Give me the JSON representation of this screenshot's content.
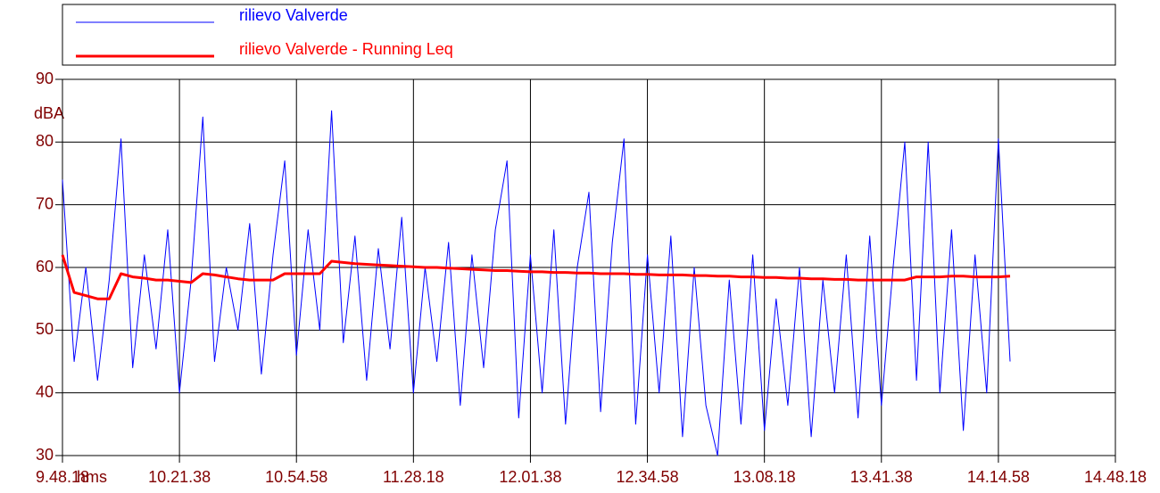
{
  "chart_data": {
    "type": "line",
    "y_label": "dBA",
    "x_unit": "hms",
    "x": [
      35298,
      35498,
      35698,
      35898,
      36098,
      36298,
      36498,
      36698,
      36898,
      37098,
      37298,
      37498,
      37698,
      37898,
      38098,
      38298,
      38498,
      38698,
      38898,
      39098,
      39298,
      39498,
      39698,
      39898,
      40098,
      40298,
      40498,
      40698,
      40898,
      41098,
      41298,
      41498,
      41698,
      41898,
      42098,
      42298,
      42498,
      42698,
      42898,
      43098,
      43298,
      43498,
      43698,
      43898,
      44098,
      44298,
      44498,
      44698,
      44898,
      45098,
      45298,
      45498,
      45698,
      45898,
      46098,
      46298,
      46498,
      46698,
      46898,
      47098,
      47298,
      47498,
      47698,
      47898,
      48098,
      48298,
      48498,
      48698,
      48898,
      49098,
      49298,
      49498,
      49698,
      49898,
      50098,
      50298,
      50498,
      50698,
      50898,
      51098,
      51298,
      51498
    ],
    "series": [
      {
        "name": "rilievo Valverde",
        "color": "#0000ff",
        "values": [
          74,
          45,
          60,
          42,
          58,
          80.5,
          44,
          62,
          47,
          66,
          40,
          58,
          84,
          45,
          60,
          50,
          67,
          43,
          62,
          77,
          46,
          66,
          50,
          85,
          48,
          65,
          42,
          63,
          47,
          68,
          40,
          60,
          45,
          64,
          38,
          62,
          44,
          66,
          77,
          36,
          62,
          40,
          66,
          35,
          60,
          72,
          37,
          64,
          80.5,
          35,
          62,
          40,
          65,
          33,
          60,
          38,
          30,
          58,
          35,
          62,
          34,
          55,
          38,
          60,
          33,
          58,
          40,
          62,
          36,
          65,
          38,
          60,
          80,
          42,
          80,
          40,
          66,
          34,
          62,
          40,
          80.5,
          45
        ]
      },
      {
        "name": "rilievo Valverde - Running Leq",
        "color": "#ff0000",
        "values": [
          62,
          56,
          55.5,
          55,
          55,
          59,
          58.5,
          58.3,
          58,
          58,
          57.8,
          57.6,
          59,
          58.8,
          58.5,
          58.2,
          58,
          58,
          58,
          59,
          59,
          59,
          59,
          61,
          60.8,
          60.6,
          60.5,
          60.4,
          60.3,
          60.2,
          60.1,
          60,
          60,
          59.9,
          59.8,
          59.7,
          59.6,
          59.5,
          59.5,
          59.4,
          59.3,
          59.3,
          59.2,
          59.2,
          59.1,
          59.1,
          59,
          59,
          59,
          58.9,
          58.9,
          58.8,
          58.8,
          58.8,
          58.7,
          58.7,
          58.6,
          58.6,
          58.5,
          58.5,
          58.4,
          58.4,
          58.3,
          58.3,
          58.2,
          58.2,
          58.1,
          58.1,
          58,
          58,
          58,
          58,
          58,
          58.5,
          58.5,
          58.5,
          58.6,
          58.6,
          58.5,
          58.5,
          58.5,
          58.6
        ]
      }
    ],
    "xlim": [
      35298,
      53298
    ],
    "xticks": [
      {
        "value": 35298,
        "label": "9.48.18"
      },
      {
        "value": 37298,
        "label": "10.21.38"
      },
      {
        "value": 39298,
        "label": "10.54.58"
      },
      {
        "value": 41298,
        "label": "11.28.18"
      },
      {
        "value": 43298,
        "label": "12.01.38"
      },
      {
        "value": 45298,
        "label": "12.34.58"
      },
      {
        "value": 47298,
        "label": "13.08.18"
      },
      {
        "value": 49298,
        "label": "13.41.38"
      },
      {
        "value": 51298,
        "label": "14.14.58"
      },
      {
        "value": 53298,
        "label": "14.48.18"
      }
    ],
    "ylim": [
      30,
      90
    ],
    "yticks": [
      30,
      40,
      50,
      60,
      70,
      80,
      90
    ],
    "grid": true
  }
}
